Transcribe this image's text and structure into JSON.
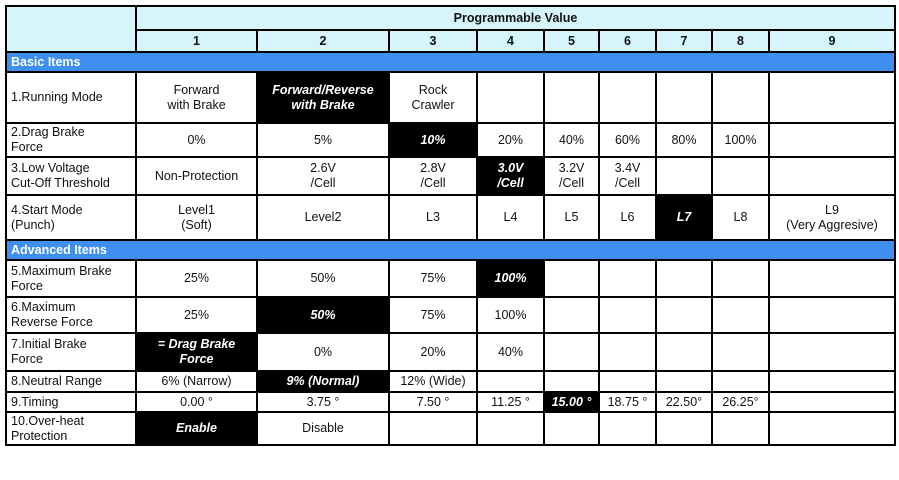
{
  "header": {
    "title": "Programmable Value",
    "columns": [
      "1",
      "2",
      "3",
      "4",
      "5",
      "6",
      "7",
      "8",
      "9"
    ]
  },
  "sections": {
    "basic": "Basic Items",
    "advanced": "Advanced Items"
  },
  "rows": {
    "running_mode": {
      "label": "1.Running Mode",
      "cells": [
        "Forward\nwith Brake",
        "Forward/Reverse\nwith Brake",
        "Rock\nCrawler"
      ],
      "selected": "Forward/Reverse\nwith Brake"
    },
    "drag_brake": {
      "label": "2.Drag Brake\nForce",
      "cells": [
        "0%",
        "5%",
        "10%",
        "20%",
        "40%",
        "60%",
        "80%",
        "100%"
      ],
      "selected": "10%"
    },
    "low_voltage": {
      "label": "3.Low Voltage\nCut-Off Threshold",
      "cells": [
        "Non-Protection",
        "2.6V\n/Cell",
        "2.8V\n/Cell",
        "3.0V\n/Cell",
        "3.2V\n/Cell",
        "3.4V\n/Cell"
      ],
      "selected": "3.0V\n/Cell"
    },
    "start_mode": {
      "label": "4.Start Mode\n(Punch)",
      "cells": [
        "Level1\n(Soft)",
        "Level2",
        "L3",
        "L4",
        "L5",
        "L6",
        "L7",
        "L8",
        "L9\n(Very Aggresive)"
      ],
      "selected": "L7"
    },
    "max_brake": {
      "label": "5.Maximum Brake\nForce",
      "cells": [
        "25%",
        "50%",
        "75%",
        "100%"
      ],
      "selected": "100%"
    },
    "max_reverse": {
      "label": "6.Maximum\nReverse Force",
      "cells": [
        "25%",
        "50%",
        "75%",
        "100%"
      ],
      "selected": "50%"
    },
    "initial_brake": {
      "label": "7.Initial Brake\nForce",
      "cells": [
        "= Drag Brake\nForce",
        "0%",
        "20%",
        "40%"
      ],
      "selected": "= Drag Brake\nForce"
    },
    "neutral_range": {
      "label": "8.Neutral Range",
      "cells": [
        "6% (Narrow)",
        "9% (Normal)",
        "12% (Wide)"
      ],
      "selected": "9% (Normal)"
    },
    "timing": {
      "label": "9.Timing",
      "cells": [
        "0.00 °",
        "3.75 °",
        "7.50 °",
        "11.25 °",
        "15.00 °",
        "18.75 °",
        "22.50°",
        "26.25°"
      ],
      "selected": "15.00 °"
    },
    "overheat": {
      "label": "10.Over-heat\nProtection",
      "cells": [
        "Enable",
        "Disable"
      ],
      "selected": "Enable"
    }
  },
  "colors": {
    "header_bg": "#d5f5fa",
    "section_bg": "#3f8ff0",
    "selected_bg": "#000000",
    "selected_fg": "#ffffff"
  }
}
